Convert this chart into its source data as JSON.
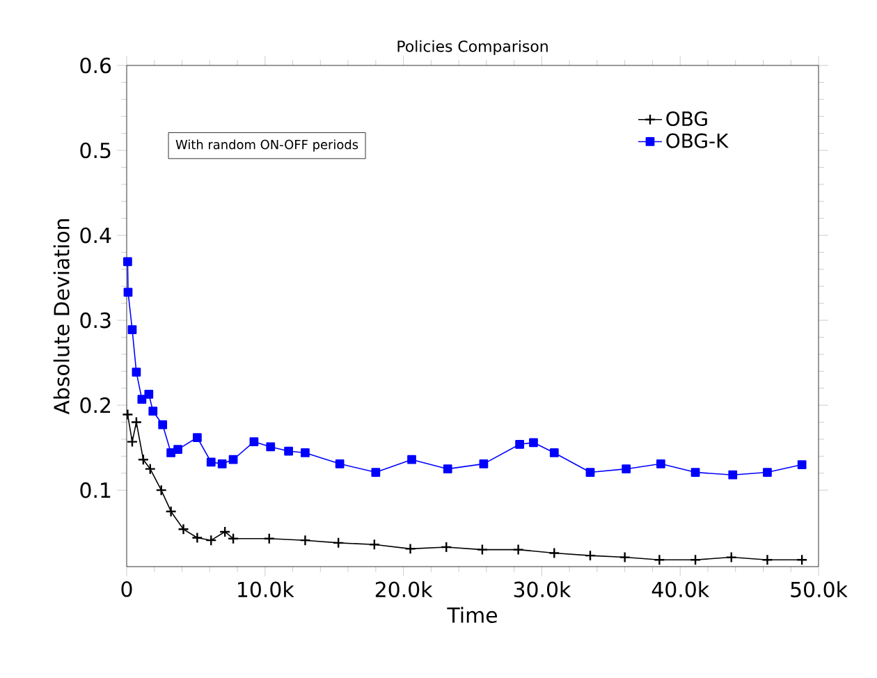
{
  "chart_data": {
    "type": "line",
    "title": "Policies Comparison",
    "xlabel": "Time",
    "ylabel": "Absolute Deviation",
    "annotations": [
      "With random ON-OFF periods"
    ],
    "xlim": [
      0,
      50000
    ],
    "ylim": [
      0.01,
      0.6
    ],
    "xticks": [
      0,
      {
        "value": 10000,
        "label": "10.0k"
      },
      {
        "value": 20000,
        "label": "20.0k"
      },
      {
        "value": 30000,
        "label": "30.0k"
      },
      {
        "value": 40000,
        "label": "40.0k"
      },
      {
        "value": 50000,
        "label": "50.0k"
      }
    ],
    "yticks": [
      0.1,
      0.2,
      0.3,
      0.4,
      0.5,
      0.6
    ],
    "grid": false,
    "legend": "top right",
    "line_style": "solid",
    "series": [
      {
        "name": "OBG",
        "color": "#000000",
        "marker": "cross",
        "x": [
          70,
          400,
          700,
          1200,
          1700,
          2500,
          3200,
          4100,
          5100,
          6100,
          7100,
          7700,
          10300,
          12900,
          15300,
          17900,
          20500,
          23100,
          25700,
          28300,
          30900,
          33500,
          36000,
          38500,
          41100,
          43700,
          46300,
          48800
        ],
        "values": [
          0.189,
          0.157,
          0.18,
          0.136,
          0.125,
          0.1,
          0.075,
          0.054,
          0.044,
          0.041,
          0.051,
          0.043,
          0.043,
          0.041,
          0.038,
          0.036,
          0.031,
          0.033,
          0.03,
          0.03,
          0.026,
          0.023,
          0.021,
          0.018,
          0.018,
          0.021,
          0.018,
          0.018
        ]
      },
      {
        "name": "OBG-K",
        "color": "#0000ff",
        "marker": "square",
        "x": [
          70,
          100,
          400,
          700,
          1100,
          1600,
          1900,
          2600,
          3200,
          3700,
          5100,
          6100,
          6900,
          7700,
          9200,
          10400,
          11700,
          12900,
          15400,
          18000,
          20600,
          23200,
          25800,
          28400,
          29400,
          30900,
          33500,
          36100,
          38600,
          41100,
          43800,
          46300,
          48800
        ],
        "values": [
          0.369,
          0.333,
          0.289,
          0.239,
          0.207,
          0.213,
          0.193,
          0.177,
          0.144,
          0.148,
          0.162,
          0.133,
          0.131,
          0.136,
          0.157,
          0.151,
          0.146,
          0.144,
          0.131,
          0.121,
          0.136,
          0.125,
          0.131,
          0.154,
          0.156,
          0.144,
          0.121,
          0.125,
          0.131,
          0.121,
          0.118,
          0.121,
          0.13
        ]
      }
    ]
  }
}
